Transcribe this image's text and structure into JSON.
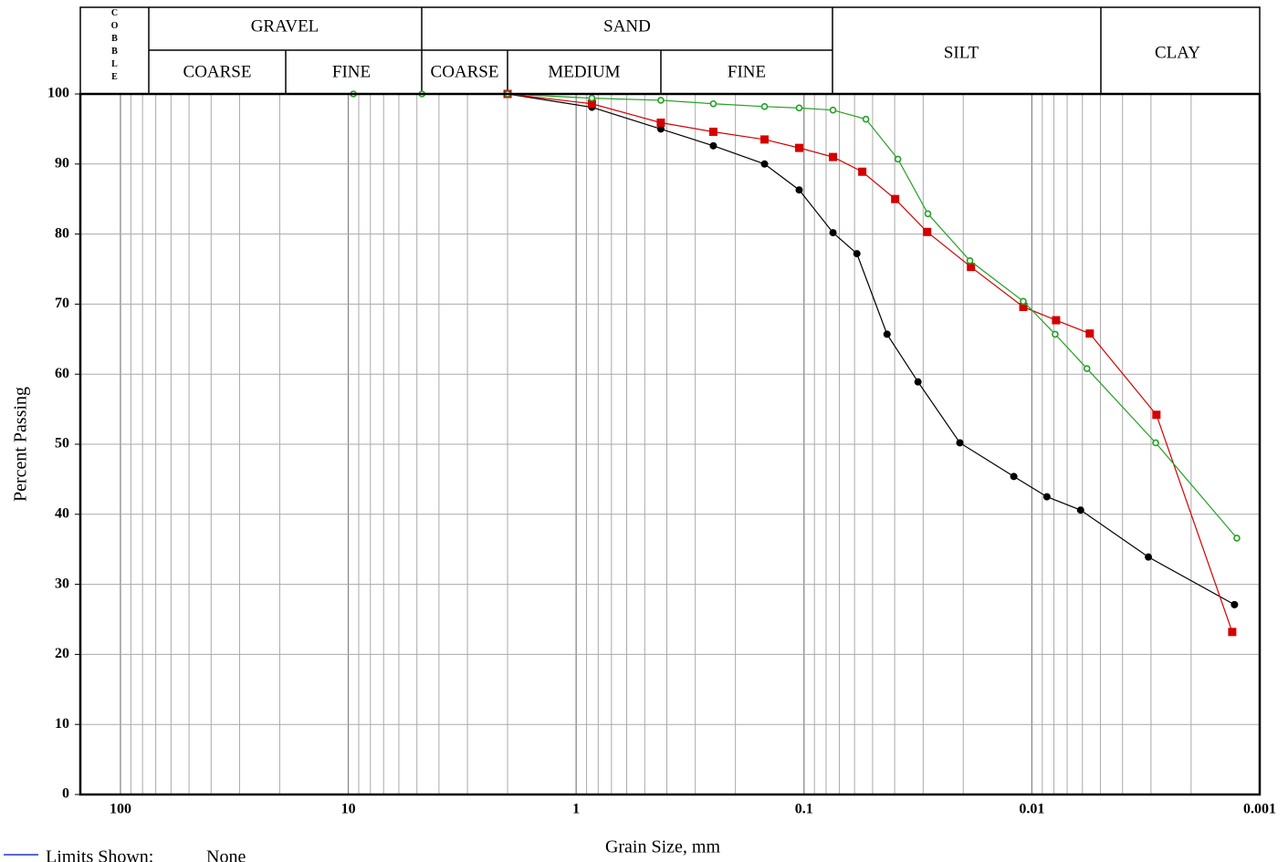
{
  "chart_data": {
    "type": "line",
    "x_label": "Grain Size, mm",
    "y_label": "Percent Passing",
    "log_x": true,
    "grid": true,
    "xlim": [
      150,
      0.001
    ],
    "xticks": [
      100,
      10,
      1,
      0.1,
      0.01,
      0.001
    ],
    "x_minor_ticks": [
      90,
      80,
      70,
      60,
      50,
      40,
      30,
      20,
      9,
      8,
      7,
      6,
      5,
      4,
      3,
      2,
      0.9,
      0.8,
      0.7,
      0.6,
      0.5,
      0.4,
      0.3,
      0.2,
      0.09,
      0.08,
      0.07,
      0.06,
      0.05,
      0.04,
      0.03,
      0.02,
      0.009,
      0.008,
      0.007,
      0.006,
      0.005,
      0.004,
      0.003,
      0.002
    ],
    "ylim": [
      0,
      100
    ],
    "yticks": [
      0,
      10,
      20,
      30,
      40,
      50,
      60,
      70,
      80,
      90,
      100
    ],
    "soil_classes": {
      "cobble": "COBBLE",
      "gravel": {
        "label": "GRAVEL",
        "coarse": "COARSE",
        "fine": "FINE"
      },
      "sand": {
        "label": "SAND",
        "coarse": "COARSE",
        "medium": "MEDIUM",
        "fine": "FINE"
      },
      "silt": "SILT",
      "clay": "CLAY"
    },
    "limits_label": "Limits Shown:",
    "limits_value": "None",
    "series": [
      {
        "color": "#000000",
        "marker": "circle",
        "x": [
          2.0,
          0.853,
          0.425,
          0.25,
          0.149,
          0.105,
          0.0746,
          0.0586,
          0.0432,
          0.0316,
          0.0207,
          0.012,
          0.00859,
          0.00611,
          0.00308,
          0.00129
        ],
        "values": [
          100,
          98.1,
          95,
          92.6,
          90,
          86.3,
          80.2,
          77.2,
          65.7,
          58.9,
          50.2,
          45.4,
          42.5,
          40.6,
          33.9,
          27.1
        ]
      },
      {
        "color": "#d40000",
        "marker": "square",
        "x": [
          2.0,
          0.853,
          0.425,
          0.25,
          0.149,
          0.105,
          0.0746,
          0.0555,
          0.0398,
          0.0288,
          0.0185,
          0.0109,
          0.00783,
          0.00557,
          0.00284,
          0.00132
        ],
        "values": [
          100,
          98.6,
          95.9,
          94.6,
          93.5,
          92.3,
          91.0,
          88.9,
          85.0,
          80.3,
          75.3,
          69.6,
          67.7,
          65.8,
          54.2,
          23.2
        ]
      },
      {
        "color": "#22a022",
        "marker": "open-circle",
        "x": [
          9.5,
          4.75,
          2.0,
          0.853,
          0.425,
          0.25,
          0.149,
          0.105,
          0.0746,
          0.0535,
          0.0387,
          0.0286,
          0.0187,
          0.0109,
          0.0079,
          0.00573,
          0.00286,
          0.00126
        ],
        "values": [
          100,
          100,
          100,
          99.4,
          99.1,
          98.6,
          98.2,
          98.0,
          97.7,
          96.4,
          90.7,
          82.9,
          76.2,
          70.4,
          65.7,
          60.8,
          50.2,
          36.6
        ]
      }
    ]
  }
}
